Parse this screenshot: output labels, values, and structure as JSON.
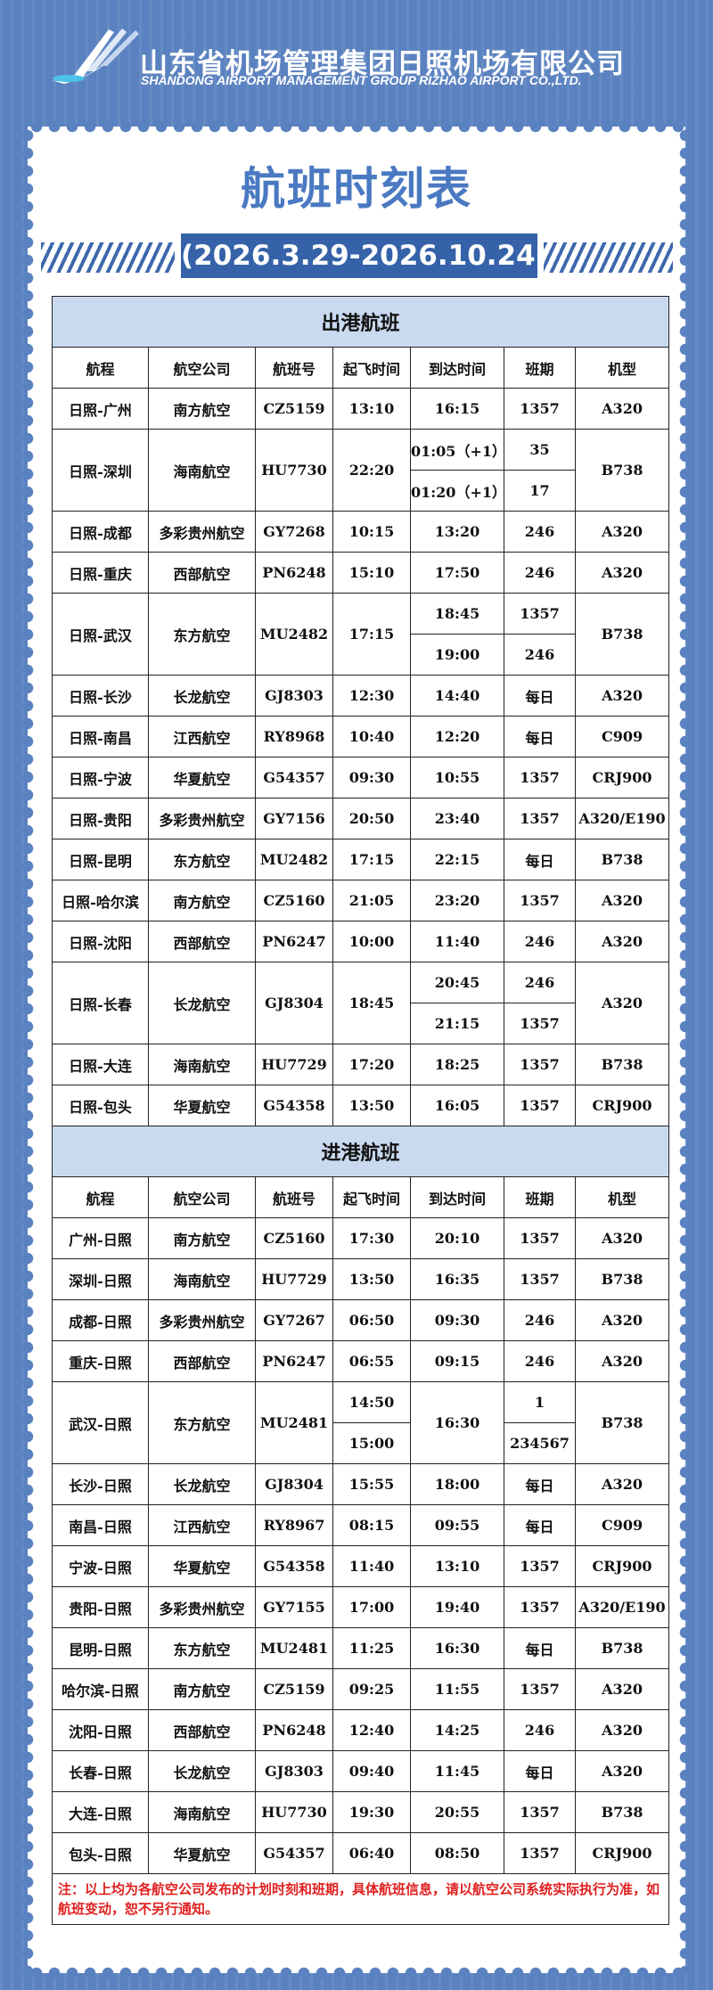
{
  "header": {
    "company": "山东省机场管理集团日照机场有限公司",
    "company_en": "SHANDONG AIRPORT MANAGEMENT GROUP RIZHAO AIRPORT CO.,LTD."
  },
  "title": "航班时刻表",
  "date_range": "(2026.3.29-2026.10.24)",
  "columns": [
    "航程",
    "航空公司",
    "航班号",
    "起飞时间",
    "到达时间",
    "班期",
    "机型"
  ],
  "departures": {
    "title": "出港航班",
    "rows": [
      [
        "日照-广州",
        "南方航空",
        "CZ5159",
        "13:10",
        "16:15",
        "1357",
        "A320"
      ],
      [
        "日照-深圳",
        "海南航空",
        "HU7730",
        "22:20",
        [
          "01:05（+1）",
          "01:20（+1）"
        ],
        [
          "35",
          "17"
        ],
        "B738"
      ],
      [
        "日照-成都",
        "多彩贵州航空",
        "GY7268",
        "10:15",
        "13:20",
        "246",
        "A320"
      ],
      [
        "日照-重庆",
        "西部航空",
        "PN6248",
        "15:10",
        "17:50",
        "246",
        "A320"
      ],
      [
        "日照-武汉",
        "东方航空",
        "MU2482",
        "17:15",
        [
          "18:45",
          "19:00"
        ],
        [
          "1357",
          "246"
        ],
        "B738"
      ],
      [
        "日照-长沙",
        "长龙航空",
        "GJ8303",
        "12:30",
        "14:40",
        "每日",
        "A320"
      ],
      [
        "日照-南昌",
        "江西航空",
        "RY8968",
        "10:40",
        "12:20",
        "每日",
        "C909"
      ],
      [
        "日照-宁波",
        "华夏航空",
        "G54357",
        "09:30",
        "10:55",
        "1357",
        "CRJ900"
      ],
      [
        "日照-贵阳",
        "多彩贵州航空",
        "GY7156",
        "20:50",
        "23:40",
        "1357",
        "A320/E190"
      ],
      [
        "日照-昆明",
        "东方航空",
        "MU2482",
        "17:15",
        "22:15",
        "每日",
        "B738"
      ],
      [
        "日照-哈尔滨",
        "南方航空",
        "CZ5160",
        "21:05",
        "23:20",
        "1357",
        "A320"
      ],
      [
        "日照-沈阳",
        "西部航空",
        "PN6247",
        "10:00",
        "11:40",
        "246",
        "A320"
      ],
      [
        "日照-长春",
        "长龙航空",
        "GJ8304",
        "18:45",
        [
          "20:45",
          "21:15"
        ],
        [
          "246",
          "1357"
        ],
        "A320"
      ],
      [
        "日照-大连",
        "海南航空",
        "HU7729",
        "17:20",
        "18:25",
        "1357",
        "B738"
      ],
      [
        "日照-包头",
        "华夏航空",
        "G54358",
        "13:50",
        "16:05",
        "1357",
        "CRJ900"
      ]
    ]
  },
  "arrivals": {
    "title": "进港航班",
    "rows": [
      [
        "广州-日照",
        "南方航空",
        "CZ5160",
        "17:30",
        "20:10",
        "1357",
        "A320"
      ],
      [
        "深圳-日照",
        "海南航空",
        "HU7729",
        "13:50",
        "16:35",
        "1357",
        "B738"
      ],
      [
        "成都-日照",
        "多彩贵州航空",
        "GY7267",
        "06:50",
        "09:30",
        "246",
        "A320"
      ],
      [
        "重庆-日照",
        "西部航空",
        "PN6247",
        "06:55",
        "09:15",
        "246",
        "A320"
      ],
      [
        "武汉-日照",
        "东方航空",
        "MU2481",
        [
          "14:50",
          "15:00"
        ],
        "16:30",
        [
          "1",
          "234567"
        ],
        "B738"
      ],
      [
        "长沙-日照",
        "长龙航空",
        "GJ8304",
        "15:55",
        "18:00",
        "每日",
        "A320"
      ],
      [
        "南昌-日照",
        "江西航空",
        "RY8967",
        "08:15",
        "09:55",
        "每日",
        "C909"
      ],
      [
        "宁波-日照",
        "华夏航空",
        "G54358",
        "11:40",
        "13:10",
        "1357",
        "CRJ900"
      ],
      [
        "贵阳-日照",
        "多彩贵州航空",
        "GY7155",
        "17:00",
        "19:40",
        "1357",
        "A320/E190"
      ],
      [
        "昆明-日照",
        "东方航空",
        "MU2481",
        "11:25",
        "16:30",
        "每日",
        "B738"
      ],
      [
        "哈尔滨-日照",
        "南方航空",
        "CZ5159",
        "09:25",
        "11:55",
        "1357",
        "A320"
      ],
      [
        "沈阳-日照",
        "西部航空",
        "PN6248",
        "12:40",
        "14:25",
        "246",
        "A320"
      ],
      [
        "长春-日照",
        "长龙航空",
        "GJ8303",
        "09:40",
        "11:45",
        "每日",
        "A320"
      ],
      [
        "大连-日照",
        "海南航空",
        "HU7730",
        "19:30",
        "20:55",
        "1357",
        "B738"
      ],
      [
        "包头-日照",
        "华夏航空",
        "G54357",
        "06:40",
        "08:50",
        "1357",
        "CRJ900"
      ]
    ]
  },
  "note": "注：以上均为各航空公司发布的计划时刻和班期，具体航班信息，请以航空公司系统实际执行为准，如航班变动，恕不另行通知。"
}
